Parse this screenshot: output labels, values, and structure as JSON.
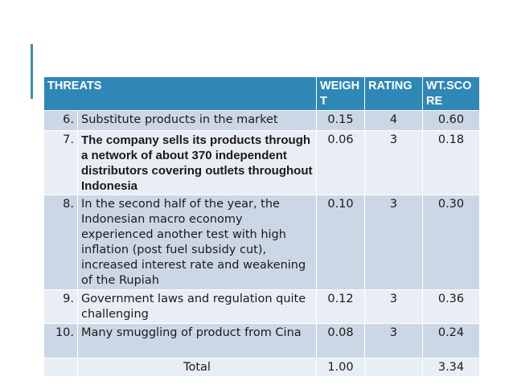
{
  "table": {
    "headers": {
      "threats": "THREATS",
      "weight": "WEIGHT",
      "rating": "RATING",
      "wt_score": "WT.SCORE"
    },
    "rows": [
      {
        "no": "6.",
        "description": "Substitute products in the market",
        "weight": "0.15",
        "rating": "4",
        "score": "0.60"
      },
      {
        "no": "7.",
        "description": "The company sells its products through a network of about 370 independent distributors covering outlets throughout Indonesia",
        "weight": "0.06",
        "rating": "3",
        "score": "0.18"
      },
      {
        "no": "8.",
        "description": "In the second half of the year, the Indonesian macro economy experienced another test with high inflation (post fuel subsidy cut), increased interest rate and weakening of the Rupiah",
        "weight": "0.10",
        "rating": "3",
        "score": "0.30"
      },
      {
        "no": "9.",
        "description": "Government laws and regulation quite challenging",
        "weight": "0.12",
        "rating": "3",
        "score": "0.36"
      },
      {
        "no": "10.",
        "description": "Many smuggling of product from Cina",
        "weight": "0.08",
        "rating": "3",
        "score": "0.24"
      }
    ],
    "total": {
      "label": "Total",
      "weight": "1.00",
      "score": "3.34"
    }
  },
  "colors": {
    "header_bg": "#2f87b6",
    "row_dark": "#ccd7e6",
    "row_light": "#e9eef5",
    "accent": "#3b8fb0"
  }
}
